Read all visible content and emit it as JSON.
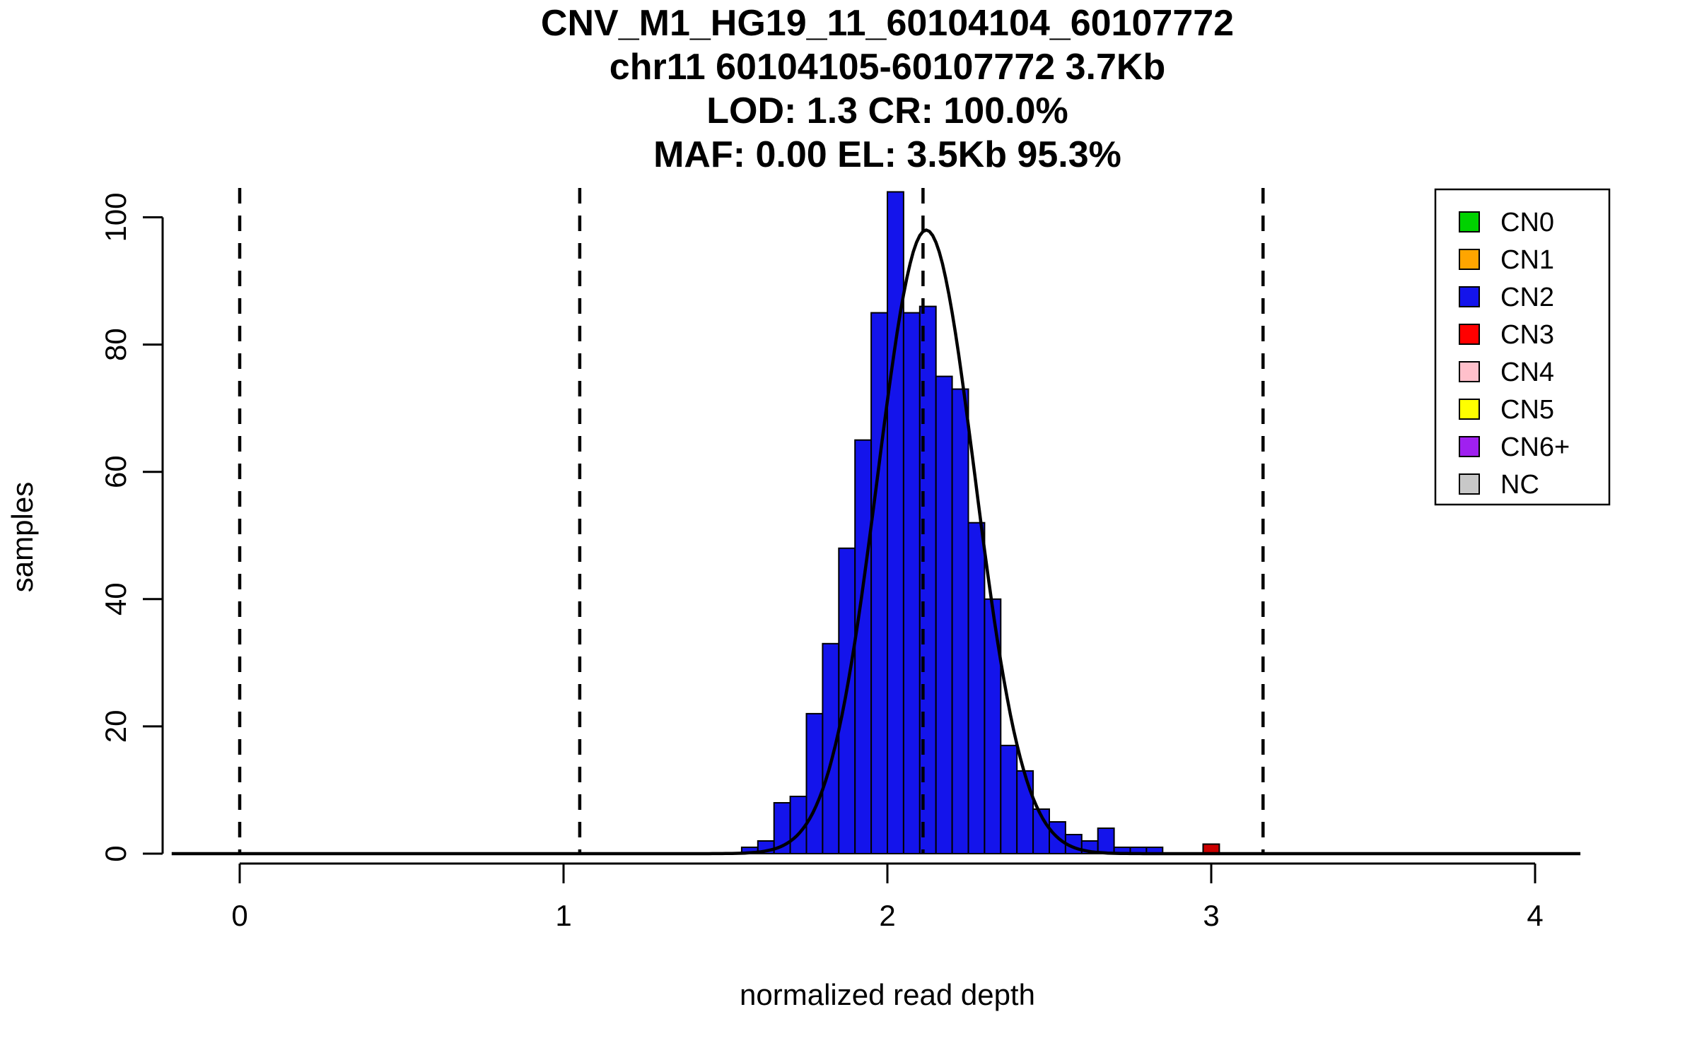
{
  "header": {
    "title_lines": [
      "CNV_M1_HG19_11_60104104_60107772",
      "chr11 60104105-60107772 3.7Kb",
      "LOD: 1.3 CR: 100.0%",
      "MAF: 0.00 EL: 3.5Kb 95.3%"
    ]
  },
  "chart_data": {
    "type": "bar",
    "subtype": "histogram-with-density-curve",
    "title": "CNV_M1_HG19_11_60104104_60107772 / chr11 60104105-60107772 3.7Kb / LOD: 1.3 CR: 100.0% / MAF: 0.00 EL: 3.5Kb 95.3%",
    "xlabel": "normalized read depth",
    "ylabel": "samples",
    "xlim": [
      -0.24,
      4.25
    ],
    "ylim": [
      0,
      105
    ],
    "x_ticks": [
      0,
      1,
      2,
      3,
      4
    ],
    "y_ticks": [
      0,
      20,
      40,
      60,
      80,
      100
    ],
    "grid": false,
    "dashed_lines_x": [
      0,
      1.05,
      2.11,
      3.16
    ],
    "series": [
      {
        "name": "CN2",
        "color": "#1414EB",
        "bin_start": 1.55,
        "bin_width": 0.05,
        "counts": [
          1,
          2,
          8,
          9,
          22,
          33,
          48,
          65,
          85,
          104,
          85,
          86,
          75,
          73,
          52,
          40,
          17,
          13,
          7,
          5,
          3,
          2,
          4,
          1,
          1,
          1
        ]
      },
      {
        "name": "CN3",
        "color": "#CC0000",
        "bin_start": 2.975,
        "bin_width": 0.05,
        "counts": [
          1.5
        ]
      }
    ],
    "density_curve": {
      "color": "#000000",
      "mean": 2.12,
      "sd": 0.15,
      "peak": 98,
      "x_range": [
        -0.21,
        4.14
      ]
    },
    "legend": {
      "position": "top-right",
      "entries": [
        {
          "label": "CN0",
          "color": "#00D200"
        },
        {
          "label": "CN1",
          "color": "#FFA500"
        },
        {
          "label": "CN2",
          "color": "#1414EB"
        },
        {
          "label": "CN3",
          "color": "#FF0000"
        },
        {
          "label": "CN4",
          "color": "#FFC0CB"
        },
        {
          "label": "CN5",
          "color": "#FFFF00"
        },
        {
          "label": "CN6+",
          "color": "#A020F0"
        },
        {
          "label": "NC",
          "color": "#C8C8C8"
        }
      ]
    }
  }
}
